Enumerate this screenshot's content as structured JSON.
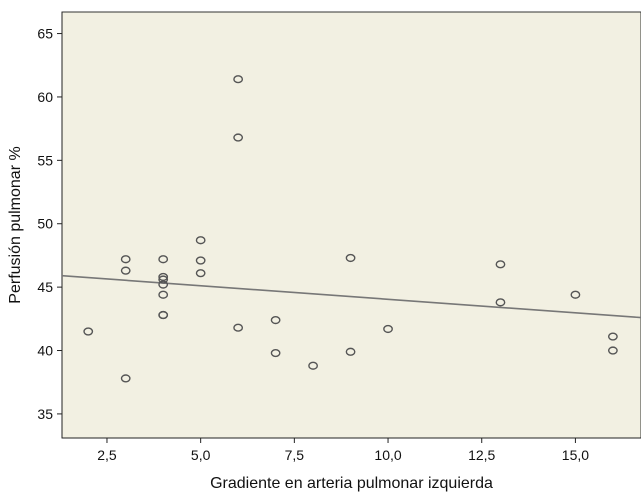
{
  "chart_data": {
    "type": "scatter",
    "title": "",
    "xlabel": "Gradiente en arteria pulmonar izquierda",
    "ylabel": "Perfusión pulmonar %",
    "xlim": [
      1.3,
      16.75
    ],
    "ylim": [
      33.1,
      66.7
    ],
    "x_ticks": [
      2.5,
      5.0,
      7.5,
      10.0,
      12.5,
      15.0
    ],
    "x_tick_labels": [
      "2,5",
      "5,0",
      "7,5",
      "10,0",
      "12,5",
      "15,0"
    ],
    "y_ticks": [
      35,
      40,
      45,
      50,
      55,
      60,
      65
    ],
    "y_tick_labels": [
      "35",
      "40",
      "45",
      "50",
      "55",
      "60",
      "65"
    ],
    "grid": false,
    "plot_background": "#f2f0e2",
    "marker_color": "#555555",
    "line_color": "#777777",
    "series": [
      {
        "points": [
          {
            "x": 2,
            "y": 41.5
          },
          {
            "x": 3,
            "y": 47.2
          },
          {
            "x": 3,
            "y": 46.3
          },
          {
            "x": 3,
            "y": 37.8
          },
          {
            "x": 4,
            "y": 47.2
          },
          {
            "x": 4,
            "y": 45.8
          },
          {
            "x": 4,
            "y": 45.6
          },
          {
            "x": 4,
            "y": 45.2
          },
          {
            "x": 4,
            "y": 44.4
          },
          {
            "x": 4,
            "y": 42.8
          },
          {
            "x": 4,
            "y": 42.8
          },
          {
            "x": 5,
            "y": 48.7
          },
          {
            "x": 5,
            "y": 47.1
          },
          {
            "x": 5,
            "y": 46.1
          },
          {
            "x": 6,
            "y": 61.4
          },
          {
            "x": 6,
            "y": 56.8
          },
          {
            "x": 6,
            "y": 41.8
          },
          {
            "x": 7,
            "y": 42.4
          },
          {
            "x": 7,
            "y": 39.8
          },
          {
            "x": 8,
            "y": 38.8
          },
          {
            "x": 9,
            "y": 47.3
          },
          {
            "x": 9,
            "y": 39.9
          },
          {
            "x": 10,
            "y": 41.7
          },
          {
            "x": 13,
            "y": 46.8
          },
          {
            "x": 13,
            "y": 43.8
          },
          {
            "x": 15,
            "y": 44.4
          },
          {
            "x": 16,
            "y": 41.1
          },
          {
            "x": 16,
            "y": 40.0
          }
        ]
      }
    ],
    "fit_line": {
      "x": [
        1.3,
        16.75
      ],
      "y": [
        45.9,
        42.6
      ]
    }
  }
}
